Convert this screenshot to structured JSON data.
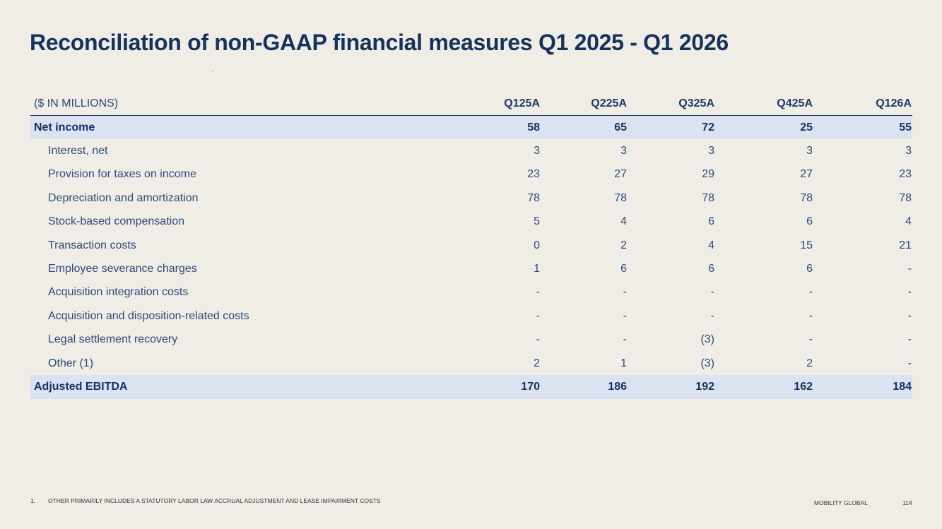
{
  "title": "Reconciliation of non-GAAP financial measures Q1 2025 - Q1 2026",
  "table": {
    "unit_label": "($ IN MILLIONS)",
    "columns": [
      "Q125A",
      "Q225A",
      "Q325A",
      "Q425A",
      "Q126A"
    ],
    "rows": [
      {
        "label": "Net income",
        "values": [
          "58",
          "65",
          "72",
          "25",
          "55"
        ],
        "style": "highlight"
      },
      {
        "label": "Interest, net",
        "values": [
          "3",
          "3",
          "3",
          "3",
          "3"
        ],
        "style": "sub"
      },
      {
        "label": "Provision for taxes on income",
        "values": [
          "23",
          "27",
          "29",
          "27",
          "23"
        ],
        "style": "sub"
      },
      {
        "label": "Depreciation and amortization",
        "values": [
          "78",
          "78",
          "78",
          "78",
          "78"
        ],
        "style": "sub"
      },
      {
        "label": "Stock-based compensation",
        "values": [
          "5",
          "4",
          "6",
          "6",
          "4"
        ],
        "style": "sub"
      },
      {
        "label": "Transaction costs",
        "values": [
          "0",
          "2",
          "4",
          "15",
          "21"
        ],
        "style": "sub"
      },
      {
        "label": "Employee severance charges",
        "values": [
          "1",
          "6",
          "6",
          "6",
          "-"
        ],
        "style": "sub"
      },
      {
        "label": "Acquisition integration costs",
        "values": [
          "-",
          "-",
          "-",
          "-",
          "-"
        ],
        "style": "sub"
      },
      {
        "label": "Acquisition and disposition-related costs",
        "values": [
          "-",
          "-",
          "-",
          "-",
          "-"
        ],
        "style": "sub"
      },
      {
        "label": "Legal settlement recovery",
        "values": [
          "-",
          "-",
          "(3)",
          "-",
          "-"
        ],
        "style": "sub"
      },
      {
        "label": "Other (1)",
        "values": [
          "2",
          "1",
          "(3)",
          "2",
          "-"
        ],
        "style": "sub"
      },
      {
        "label": "Adjusted EBITDA",
        "values": [
          "170",
          "186",
          "192",
          "162",
          "184"
        ],
        "style": "highlight"
      }
    ]
  },
  "footnote": {
    "number": "1.",
    "text": "OTHER PRIMARILY INCLUDES A STATUTORY LABOR LAW ACCRUAL ADJUSTMENT AND LEASE IMPAIRMENT COSTS"
  },
  "footer": {
    "brand": "MOBILITY GLOBAL",
    "page_number": "114"
  }
}
